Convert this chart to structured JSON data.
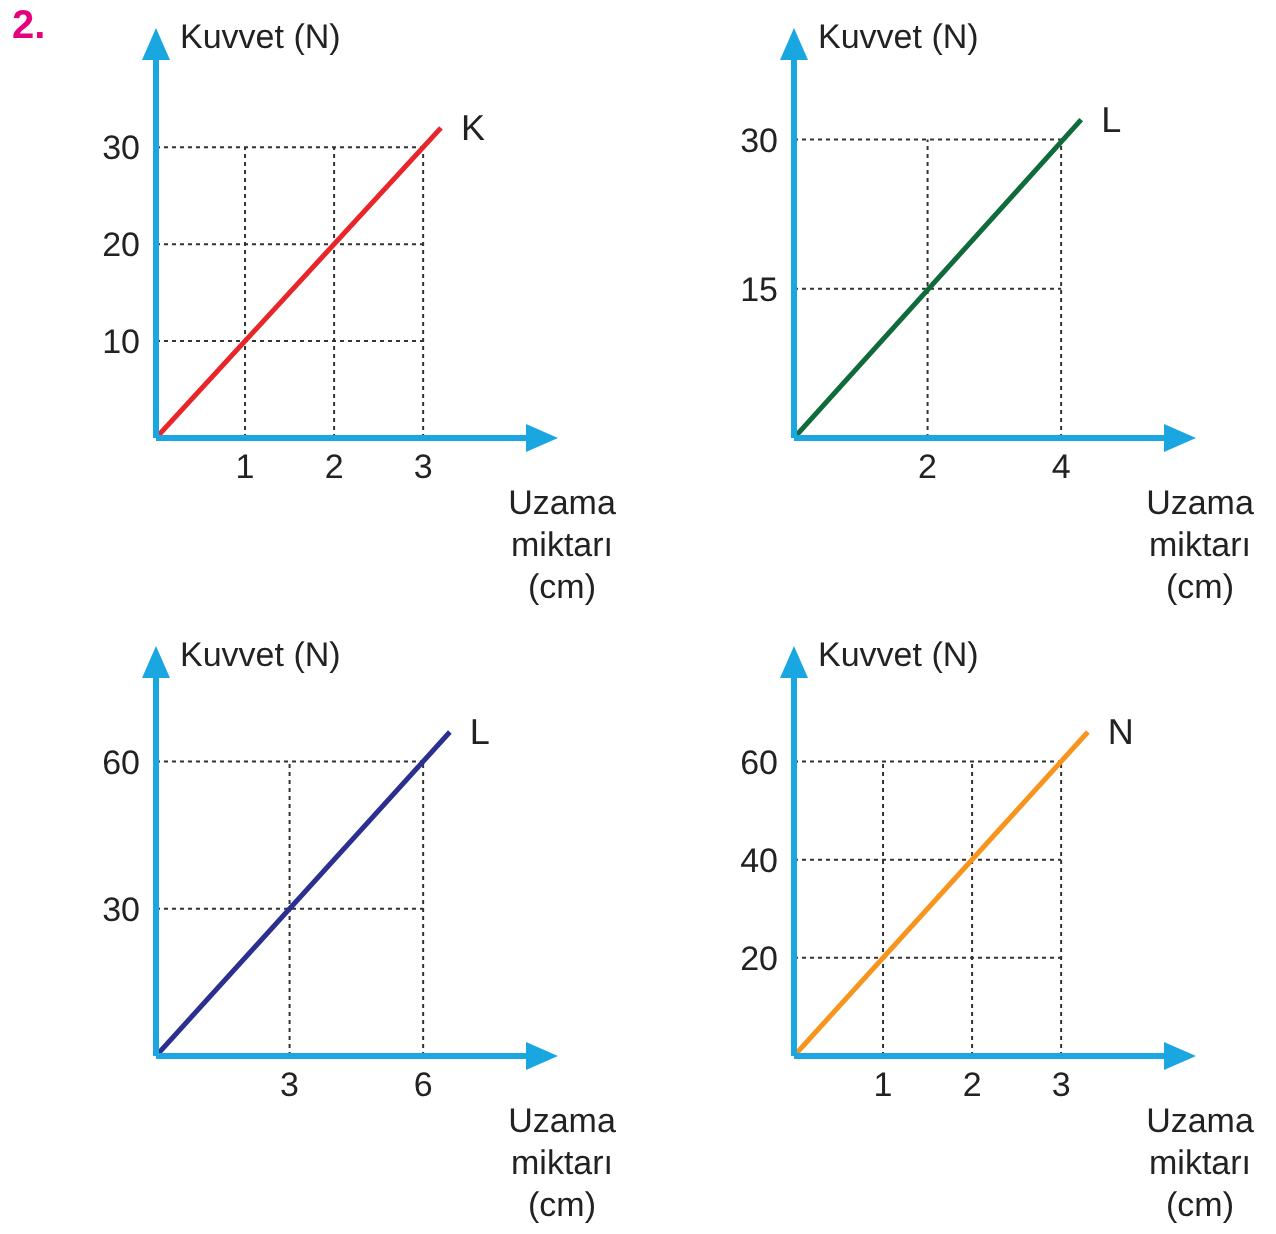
{
  "chart_data": [
    {
      "type": "line",
      "annotations": [
        "2."
      ],
      "xlabel": "Uzama miktarı (cm)",
      "ylabel": "Kuvvet (N)",
      "xlim": [
        0,
        4.2
      ],
      "ylim": [
        0,
        39
      ],
      "xticks": [
        1,
        2,
        3
      ],
      "yticks": [
        10,
        20,
        30
      ],
      "grid": true,
      "series": [
        {
          "name": "K",
          "color": "#e8262a",
          "x": [
            0,
            3.2
          ],
          "values": [
            0,
            32
          ]
        }
      ]
    },
    {
      "type": "line",
      "xlabel": "Uzama miktarı (cm)",
      "ylabel": "Kuvvet (N)",
      "xlim": [
        0,
        5.6
      ],
      "ylim": [
        0,
        38
      ],
      "xticks": [
        2,
        4
      ],
      "yticks": [
        15,
        30
      ],
      "grid": true,
      "series": [
        {
          "name": "L",
          "color": "#0f6b3a",
          "x": [
            0,
            4.3
          ],
          "values": [
            0,
            32
          ]
        }
      ]
    },
    {
      "type": "line",
      "xlabel": "Uzama miktarı (cm)",
      "ylabel": "Kuvvet (N)",
      "xlim": [
        0,
        8.4
      ],
      "ylim": [
        0,
        77
      ],
      "xticks": [
        3,
        6
      ],
      "yticks": [
        30,
        60
      ],
      "grid": true,
      "series": [
        {
          "name": "L",
          "color": "#2b2f8f",
          "x": [
            0,
            6.6
          ],
          "values": [
            0,
            66
          ]
        }
      ]
    },
    {
      "type": "line",
      "xlabel": "Uzama miktarı (cm)",
      "ylabel": "Kuvvet (N)",
      "xlim": [
        0,
        4.2
      ],
      "ylim": [
        0,
        77
      ],
      "xticks": [
        1,
        2,
        3
      ],
      "yticks": [
        20,
        40,
        60
      ],
      "grid": true,
      "series": [
        {
          "name": "N",
          "color": "#f7941d",
          "x": [
            0,
            3.3
          ],
          "values": [
            0,
            66
          ]
        }
      ]
    }
  ]
}
